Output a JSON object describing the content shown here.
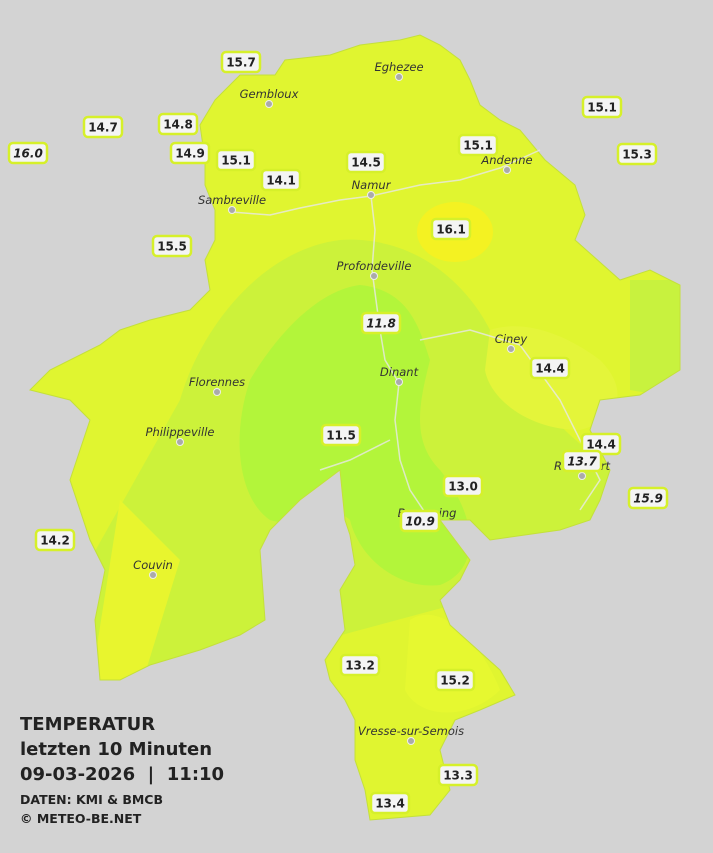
{
  "legend": {
    "title": "TEMPERATUR",
    "subtitle": "letzten 10 Minuten",
    "datetime": "09-03-2026  |  11:10",
    "source": "DATEN: KMI & BMCB",
    "copyright": "© METEO-BE.NET"
  },
  "cities": [
    {
      "name": "Eghezee"
    },
    {
      "name": "Gembloux"
    },
    {
      "name": "Andenne"
    },
    {
      "name": "Namur"
    },
    {
      "name": "Sambreville"
    },
    {
      "name": "Profondeville"
    },
    {
      "name": "Ciney"
    },
    {
      "name": "Dinant"
    },
    {
      "name": "Florennes"
    },
    {
      "name": "Philippeville"
    },
    {
      "name": "Rochefort"
    },
    {
      "name": "Beauraing"
    },
    {
      "name": "Couvin"
    },
    {
      "name": "Vresse-sur-Semois"
    }
  ],
  "stations": [
    {
      "label": "15.7"
    },
    {
      "label": "14.7"
    },
    {
      "label": "14.8"
    },
    {
      "label": "16.0"
    },
    {
      "label": "14.9"
    },
    {
      "label": "15.1"
    },
    {
      "label": "14.1"
    },
    {
      "label": "14.5"
    },
    {
      "label": "15.1"
    },
    {
      "label": "15.1"
    },
    {
      "label": "15.3"
    },
    {
      "label": "16.1"
    },
    {
      "label": "15.5"
    },
    {
      "label": "11.8"
    },
    {
      "label": "14.4"
    },
    {
      "label": "11.5"
    },
    {
      "label": "14.4"
    },
    {
      "label": "13.7"
    },
    {
      "label": "13.0"
    },
    {
      "label": "15.9"
    },
    {
      "label": "10.9"
    },
    {
      "label": "14.2"
    },
    {
      "label": "13.2"
    },
    {
      "label": "15.2"
    },
    {
      "label": "13.3"
    },
    {
      "label": "13.4"
    }
  ]
}
